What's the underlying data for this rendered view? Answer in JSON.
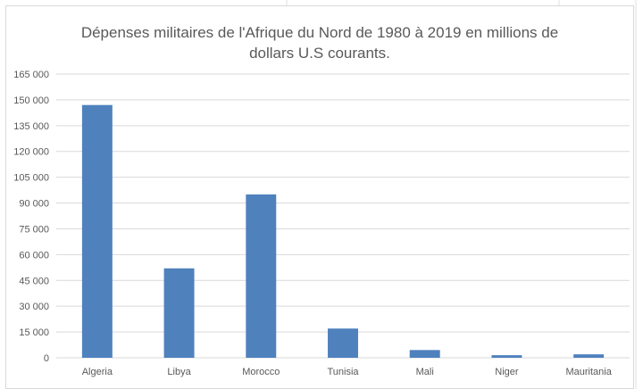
{
  "chart_data": {
    "type": "bar",
    "title_line1": "Dépenses militaires de l'Afrique du Nord de 1980 à 2019 en millions de",
    "title_line2": "dollars U.S courants.",
    "categories": [
      "Algeria",
      "Libya",
      "Morocco",
      "Tunisia",
      "Mali",
      "Niger",
      "Mauritania"
    ],
    "values": [
      147000,
      52000,
      95000,
      17000,
      4500,
      1500,
      2000
    ],
    "y_ticks": [
      "0",
      "15 000",
      "30 000",
      "45 000",
      "60 000",
      "75 000",
      "90 000",
      "105 000",
      "120 000",
      "135 000",
      "150 000",
      "165 000"
    ],
    "ylim": [
      0,
      165000
    ],
    "grid": true,
    "legend": "none",
    "bar_color": "#4f81bd",
    "grid_color": "#d9d9d9"
  }
}
